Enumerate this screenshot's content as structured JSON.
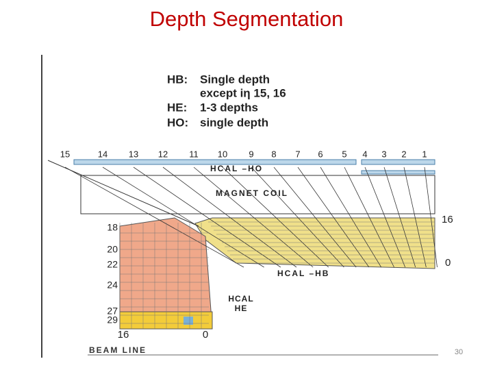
{
  "header": {
    "title": "Depth Segmentation"
  },
  "legend": [
    {
      "key": "HB:",
      "text": "Single depth"
    },
    {
      "text": "except iη 15, 16"
    },
    {
      "key": "HE:",
      "text": "1-3 depths"
    },
    {
      "key": "HO:",
      "text": "single depth"
    }
  ],
  "towers": [
    15,
    14,
    13,
    12,
    11,
    10,
    9,
    8,
    7,
    6,
    5,
    4,
    3,
    2,
    1
  ],
  "ho_label": "HCAL –HO",
  "coil_label": "MAGNET COIL",
  "hb": {
    "top_depth": 16,
    "bottom_depth": 0,
    "label": "HCAL –HB"
  },
  "he": {
    "towers": [
      18,
      20,
      22,
      24,
      27,
      29
    ],
    "bottom_left": 16,
    "bottom_right": 0,
    "label": [
      "HCAL",
      "HE"
    ]
  },
  "beam_label": "BEAM LINE",
  "page_number": 30
}
